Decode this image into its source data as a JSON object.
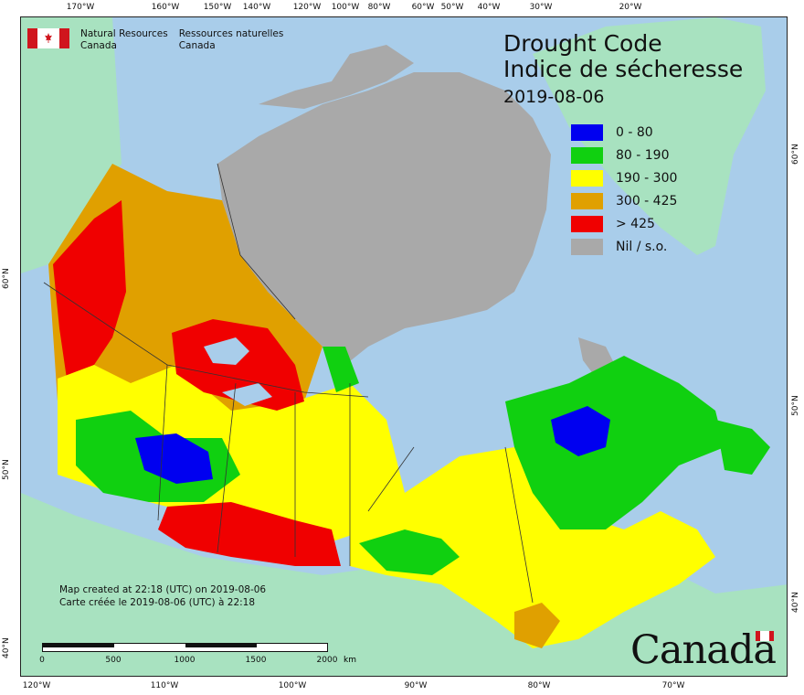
{
  "map": {
    "title_en": "Drought Code",
    "title_fr": "Indice de sécheresse",
    "date": "2019-08-06",
    "agency_en_line1": "Natural Resources",
    "agency_en_line2": "Canada",
    "agency_fr_line1": "Ressources naturelles",
    "agency_fr_line2": "Canada",
    "wordmark": "Canada",
    "credit_en": "Map created at 22:18 (UTC) on 2019-08-06",
    "credit_fr": "Carte créée le 2019-08-06 (UTC) à 22:18"
  },
  "legend": [
    {
      "label": "0 - 80",
      "color": "#0000f0"
    },
    {
      "label": "80 - 190",
      "color": "#10d010"
    },
    {
      "label": "190 - 300",
      "color": "#ffff00"
    },
    {
      "label": "300 - 425",
      "color": "#e0a000"
    },
    {
      "label": "> 425",
      "color": "#f00000"
    },
    {
      "label": "Nil / s.o.",
      "color": "#a9a9a9"
    }
  ],
  "graticule": {
    "top": [
      "170°W",
      "160°W",
      "150°W",
      "140°W",
      "120°W",
      "100°W",
      "80°W",
      "60°W",
      "50°W",
      "40°W",
      "30°W",
      "20°W"
    ],
    "bottom": [
      "120°W",
      "110°W",
      "100°W",
      "90°W",
      "80°W",
      "70°W"
    ],
    "left": [
      "60°N",
      "50°N",
      "40°N"
    ],
    "right": [
      "60°N",
      "50°N",
      "40°N"
    ]
  },
  "scale": {
    "labels": [
      "0",
      "500",
      "1000",
      "1500",
      "2000"
    ],
    "unit": "km"
  },
  "colors": {
    "water": "#a9cdea",
    "land_outside": "#a8e2c0",
    "nodata": "#a9a9a9"
  }
}
